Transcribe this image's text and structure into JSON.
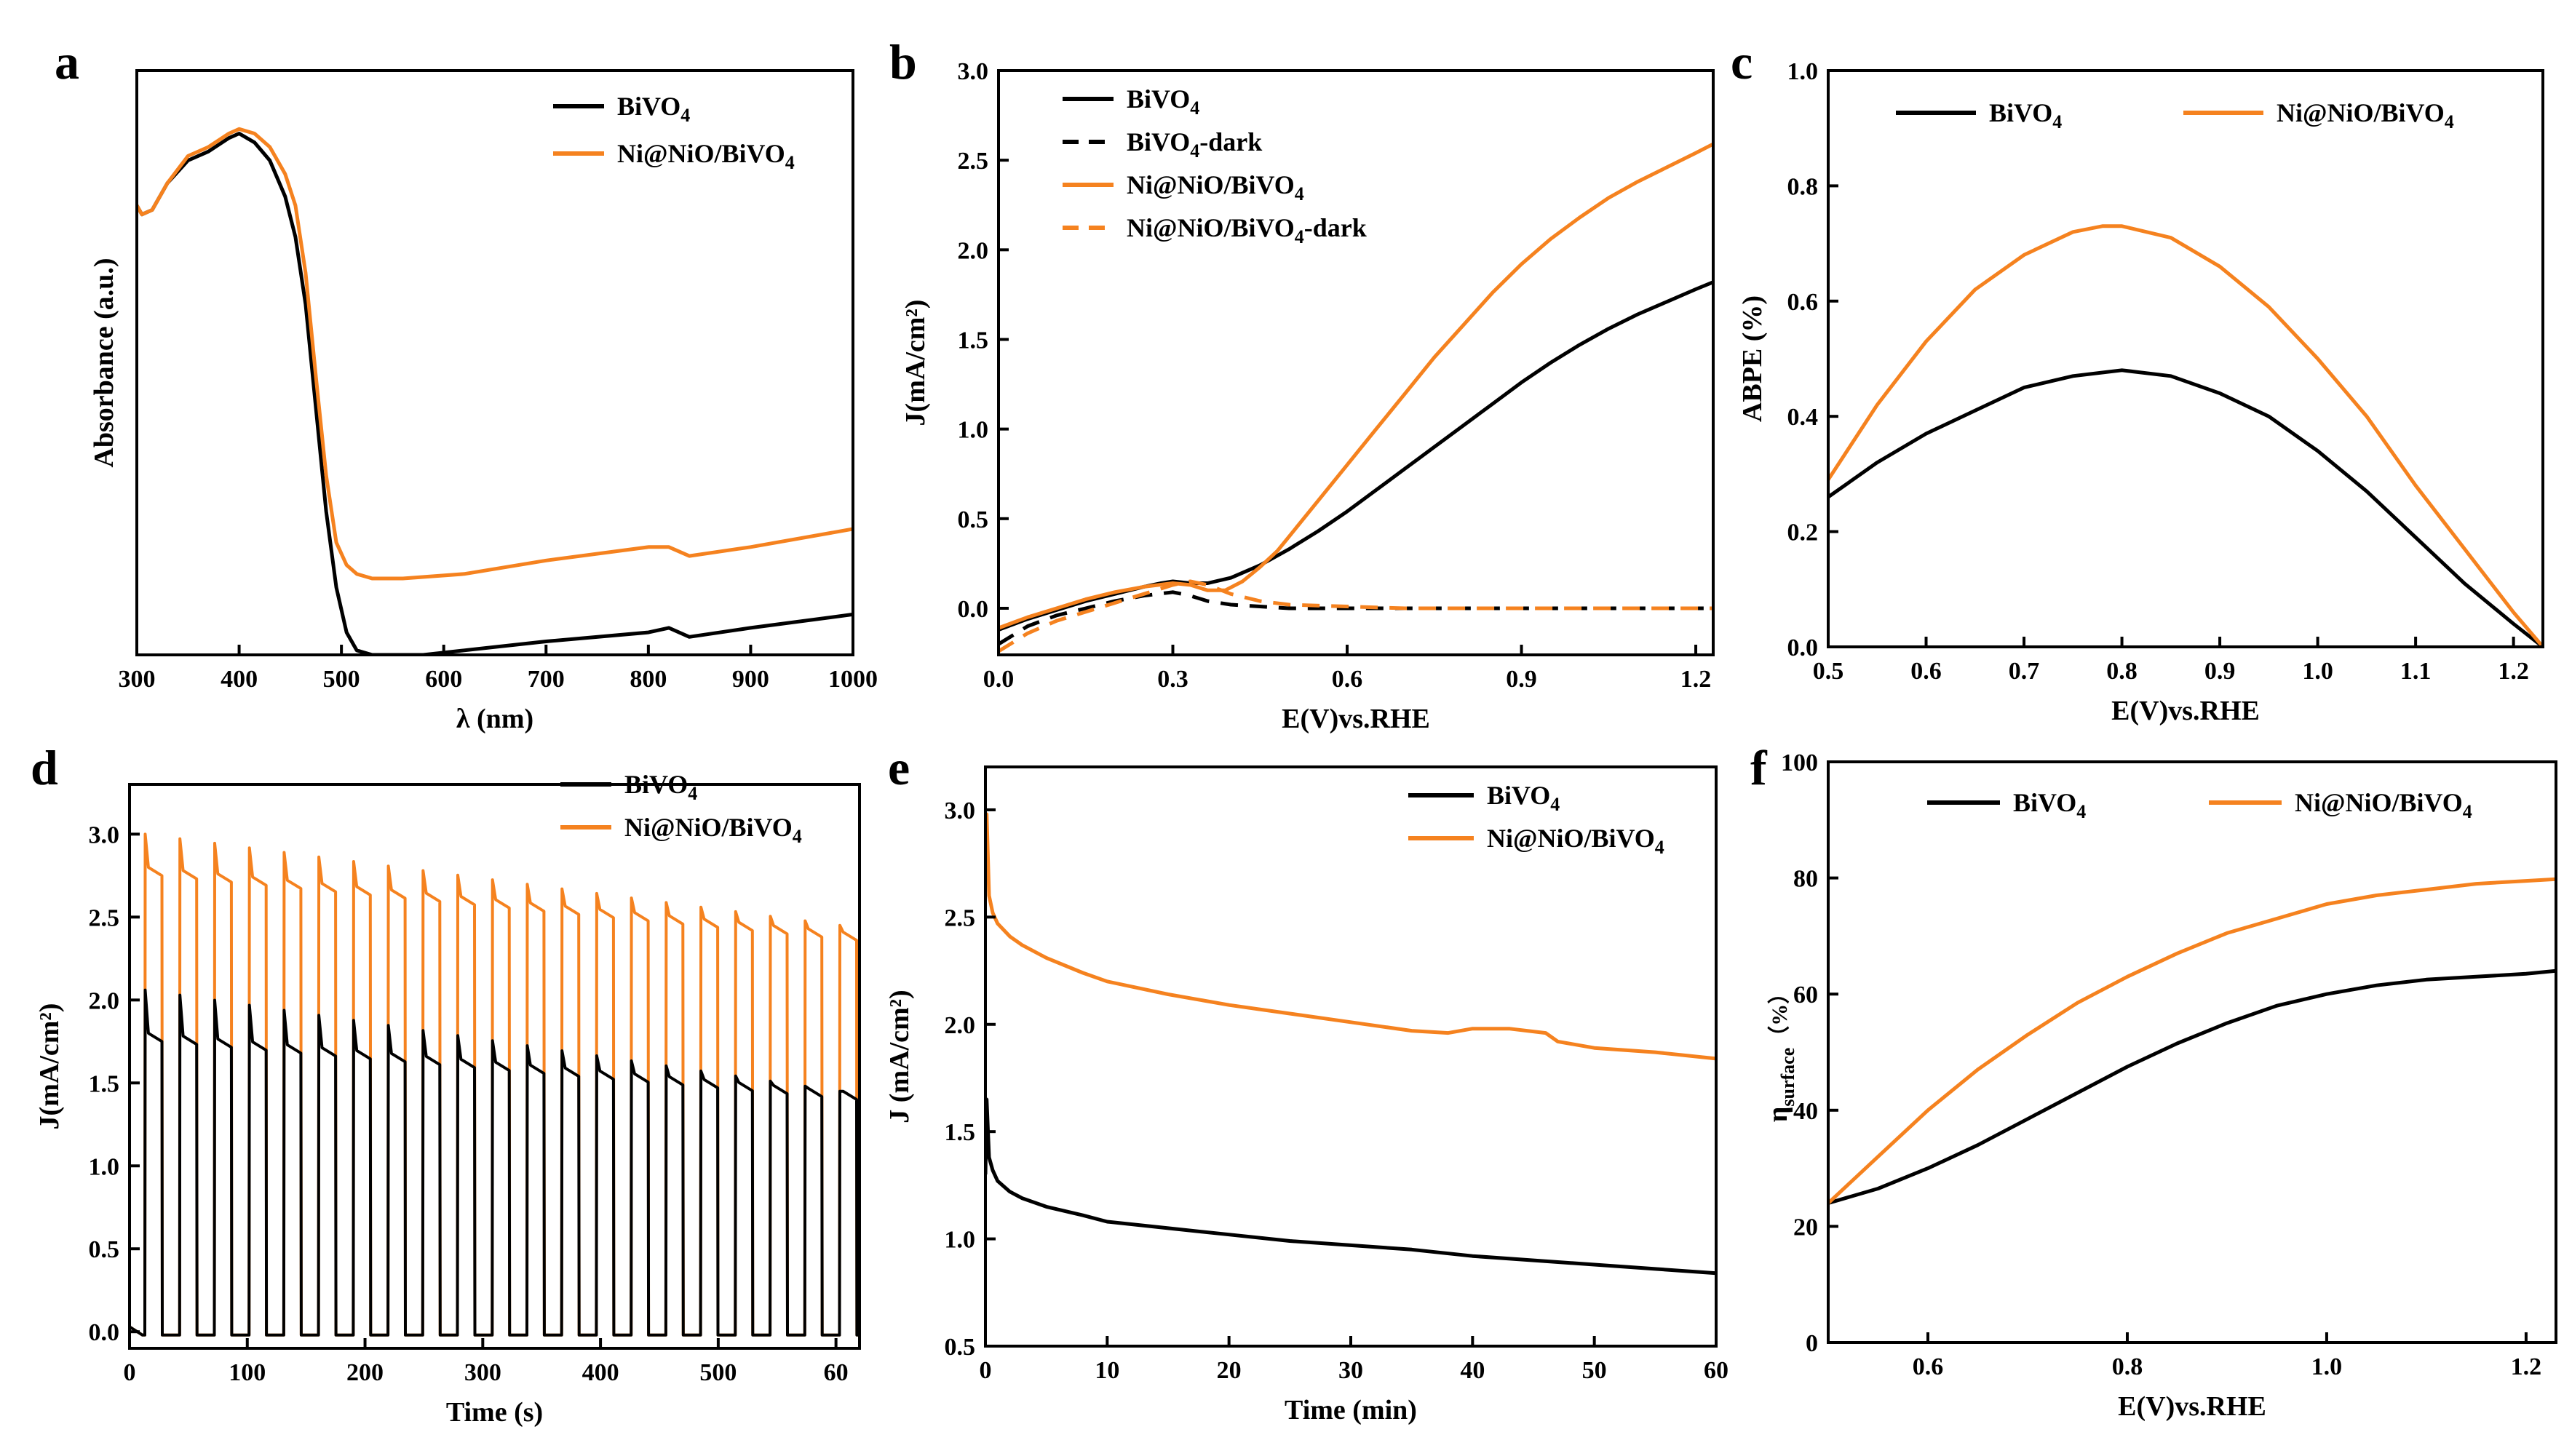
{
  "colors": {
    "bivo4": "#000000",
    "ni": "#F5821F"
  },
  "chart_data": [
    {
      "type": "line",
      "letter": "a",
      "xlabel": "λ (nm)",
      "ylabel": "Absorbance (a.u.)",
      "xlim": [
        300,
        1000
      ],
      "ylim": [
        0,
        1.3
      ],
      "xticks": [
        "300",
        "400",
        "500",
        "600",
        "700",
        "800",
        "900",
        "1000"
      ],
      "yticks": [],
      "legend": [
        {
          "text": "BiVO",
          "sub": "4",
          "after": "",
          "style": "solid",
          "color": "#000000"
        },
        {
          "text": "Ni@NiO/BiVO",
          "sub": "4",
          "after": "",
          "style": "solid",
          "color": "#F5821F"
        }
      ],
      "series": [
        {
          "name": "BiVO4",
          "color": "#000000",
          "dash": false,
          "x": [
            300,
            305,
            315,
            330,
            350,
            370,
            390,
            400,
            415,
            430,
            445,
            455,
            465,
            475,
            485,
            495,
            505,
            515,
            530,
            550,
            580,
            620,
            700,
            800,
            820,
            840,
            900,
            1000
          ],
          "y": [
            1.0,
            0.98,
            0.99,
            1.05,
            1.1,
            1.12,
            1.15,
            1.16,
            1.14,
            1.1,
            1.02,
            0.93,
            0.78,
            0.55,
            0.32,
            0.15,
            0.05,
            0.01,
            0.0,
            0.0,
            0.0,
            0.01,
            0.03,
            0.05,
            0.06,
            0.04,
            0.06,
            0.09
          ]
        },
        {
          "name": "Ni@NiO/BiVO4",
          "color": "#F5821F",
          "dash": false,
          "x": [
            300,
            305,
            315,
            330,
            350,
            370,
            390,
            400,
            415,
            430,
            445,
            455,
            465,
            475,
            485,
            495,
            505,
            515,
            530,
            560,
            620,
            700,
            800,
            820,
            840,
            900,
            1000
          ],
          "y": [
            1.0,
            0.98,
            0.99,
            1.05,
            1.11,
            1.13,
            1.16,
            1.17,
            1.16,
            1.13,
            1.07,
            1.0,
            0.85,
            0.62,
            0.4,
            0.25,
            0.2,
            0.18,
            0.17,
            0.17,
            0.18,
            0.21,
            0.24,
            0.24,
            0.22,
            0.24,
            0.28
          ]
        }
      ]
    },
    {
      "type": "line",
      "letter": "b",
      "xlabel": "E(V)vs.RHE",
      "ylabel": "J(mA/cm²)",
      "xlim": [
        0,
        1.23
      ],
      "ylim": [
        -0.26,
        3.0
      ],
      "xticks": [
        "0.0",
        "0.3",
        "0.6",
        "0.9",
        "1.2"
      ],
      "yticks": [
        "0.0",
        "0.5",
        "1.0",
        "1.5",
        "2.0",
        "2.5",
        "3.0"
      ],
      "legend": [
        {
          "text": "BiVO",
          "sub": "4",
          "after": "",
          "style": "solid",
          "color": "#000000"
        },
        {
          "text": "BiVO",
          "sub": "4",
          "after": "-dark",
          "style": "dash",
          "color": "#000000"
        },
        {
          "text": "Ni@NiO/BiVO",
          "sub": "4",
          "after": "",
          "style": "solid",
          "color": "#F5821F"
        },
        {
          "text": "Ni@NiO/BiVO",
          "sub": "4",
          "after": "-dark",
          "style": "dash",
          "color": "#F5821F"
        }
      ],
      "series": [
        {
          "name": "BiVO4",
          "color": "#000000",
          "dash": false,
          "x": [
            0,
            0.05,
            0.1,
            0.15,
            0.2,
            0.25,
            0.28,
            0.3,
            0.33,
            0.36,
            0.4,
            0.45,
            0.5,
            0.55,
            0.6,
            0.65,
            0.7,
            0.75,
            0.8,
            0.85,
            0.9,
            0.95,
            1.0,
            1.05,
            1.1,
            1.15,
            1.2,
            1.23
          ],
          "y": [
            -0.12,
            -0.06,
            -0.01,
            0.04,
            0.08,
            0.12,
            0.14,
            0.15,
            0.14,
            0.14,
            0.17,
            0.24,
            0.33,
            0.43,
            0.54,
            0.66,
            0.78,
            0.9,
            1.02,
            1.14,
            1.26,
            1.37,
            1.47,
            1.56,
            1.64,
            1.71,
            1.78,
            1.82
          ]
        },
        {
          "name": "BiVO4-dark",
          "color": "#000000",
          "dash": true,
          "x": [
            0,
            0.05,
            0.1,
            0.15,
            0.2,
            0.25,
            0.3,
            0.33,
            0.36,
            0.4,
            0.45,
            0.5,
            0.6,
            0.7,
            0.9,
            1.23
          ],
          "y": [
            -0.2,
            -0.1,
            -0.04,
            0.0,
            0.04,
            0.07,
            0.09,
            0.07,
            0.04,
            0.02,
            0.01,
            0.0,
            0.0,
            0.0,
            0.0,
            0.0
          ]
        },
        {
          "name": "Ni@NiO/BiVO4",
          "color": "#F5821F",
          "dash": false,
          "x": [
            0,
            0.05,
            0.1,
            0.15,
            0.2,
            0.25,
            0.3,
            0.33,
            0.36,
            0.39,
            0.42,
            0.45,
            0.48,
            0.5,
            0.55,
            0.6,
            0.65,
            0.7,
            0.75,
            0.8,
            0.85,
            0.9,
            0.95,
            1.0,
            1.05,
            1.1,
            1.15,
            1.2,
            1.23
          ],
          "y": [
            -0.11,
            -0.05,
            0.0,
            0.05,
            0.09,
            0.12,
            0.14,
            0.13,
            0.1,
            0.1,
            0.15,
            0.23,
            0.32,
            0.4,
            0.6,
            0.8,
            1.0,
            1.2,
            1.4,
            1.58,
            1.76,
            1.92,
            2.06,
            2.18,
            2.29,
            2.38,
            2.46,
            2.54,
            2.59
          ]
        },
        {
          "name": "Ni@NiO/BiVO4-dark",
          "color": "#F5821F",
          "dash": true,
          "x": [
            0,
            0.05,
            0.1,
            0.15,
            0.2,
            0.25,
            0.3,
            0.33,
            0.36,
            0.4,
            0.45,
            0.5,
            0.6,
            0.7,
            0.9,
            1.23
          ],
          "y": [
            -0.24,
            -0.14,
            -0.07,
            -0.02,
            0.03,
            0.08,
            0.13,
            0.15,
            0.13,
            0.08,
            0.04,
            0.02,
            0.01,
            0.0,
            0.0,
            0.0
          ]
        }
      ]
    },
    {
      "type": "line",
      "letter": "c",
      "xlabel": "E(V)vs.RHE",
      "ylabel": "ABPE (%)",
      "xlim": [
        0.5,
        1.23
      ],
      "ylim": [
        0,
        1.0
      ],
      "xticks": [
        "0.5",
        "0.6",
        "0.7",
        "0.8",
        "0.9",
        "1.0",
        "1.1",
        "1.2"
      ],
      "yticks": [
        "0.0",
        "0.2",
        "0.4",
        "0.6",
        "0.8",
        "1.0"
      ],
      "legend": [
        {
          "text": "BiVO",
          "sub": "4",
          "after": "",
          "style": "solid",
          "color": "#000000"
        },
        {
          "text": "Ni@NiO/BiVO",
          "sub": "4",
          "after": "",
          "style": "solid",
          "color": "#F5821F"
        }
      ],
      "series": [
        {
          "name": "BiVO4",
          "color": "#000000",
          "dash": false,
          "x": [
            0.5,
            0.55,
            0.6,
            0.65,
            0.7,
            0.75,
            0.8,
            0.85,
            0.9,
            0.95,
            1.0,
            1.05,
            1.1,
            1.15,
            1.2,
            1.23
          ],
          "y": [
            0.26,
            0.32,
            0.37,
            0.41,
            0.45,
            0.47,
            0.48,
            0.47,
            0.44,
            0.4,
            0.34,
            0.27,
            0.19,
            0.11,
            0.04,
            0.0
          ]
        },
        {
          "name": "Ni@NiO/BiVO4",
          "color": "#F5821F",
          "dash": false,
          "x": [
            0.5,
            0.55,
            0.6,
            0.65,
            0.7,
            0.75,
            0.78,
            0.8,
            0.85,
            0.9,
            0.95,
            1.0,
            1.05,
            1.1,
            1.15,
            1.2,
            1.23
          ],
          "y": [
            0.29,
            0.42,
            0.53,
            0.62,
            0.68,
            0.72,
            0.73,
            0.73,
            0.71,
            0.66,
            0.59,
            0.5,
            0.4,
            0.28,
            0.17,
            0.06,
            0.0
          ]
        }
      ]
    },
    {
      "type": "line",
      "letter": "d",
      "xlabel": "Time (s)",
      "ylabel": "J(mA/cm²)",
      "xlim": [
        0,
        620
      ],
      "ylim": [
        -0.1,
        3.3
      ],
      "xticks": [
        "0",
        "100",
        "200",
        "300",
        "400",
        "500",
        "60"
      ],
      "yticks": [
        "0.0",
        "0.5",
        "1.0",
        "1.5",
        "2.0",
        "2.5",
        "3.0"
      ],
      "chopped": {
        "period": 29.5,
        "on_duration": 14.5,
        "start": 13,
        "cycles": 21,
        "bivo4_on_start": 1.75,
        "bivo4_on_end": 1.4,
        "bivo4_spike_start": 2.06,
        "bivo4_spike_end": 1.45,
        "ni_on_start": 2.75,
        "ni_on_end": 2.36,
        "ni_spike_start": 3.0,
        "ni_spike_end": 2.45,
        "off_level": -0.02
      },
      "legend": [
        {
          "text": "BiVO",
          "sub": "4",
          "after": "",
          "style": "solid",
          "color": "#000000"
        },
        {
          "text": "Ni@NiO/BiVO",
          "sub": "4",
          "after": "",
          "style": "solid",
          "color": "#F5821F"
        }
      ],
      "series": []
    },
    {
      "type": "line",
      "letter": "e",
      "xlabel": "Time (min)",
      "ylabel": "J (mA/cm²)",
      "xlim": [
        0,
        60
      ],
      "ylim": [
        0.5,
        3.2
      ],
      "xticks": [
        "0",
        "10",
        "20",
        "30",
        "40",
        "50",
        "60"
      ],
      "yticks": [
        "0.5",
        "1.0",
        "1.5",
        "2.0",
        "2.5",
        "3.0"
      ],
      "legend": [
        {
          "text": "BiVO",
          "sub": "4",
          "after": "",
          "style": "solid",
          "color": "#000000"
        },
        {
          "text": "Ni@NiO/BiVO",
          "sub": "4",
          "after": "",
          "style": "solid",
          "color": "#F5821F"
        }
      ],
      "series": [
        {
          "name": "BiVO4",
          "color": "#000000",
          "dash": false,
          "x": [
            0,
            0.1,
            0.3,
            0.6,
            1,
            2,
            3,
            5,
            8,
            10,
            15,
            20,
            25,
            30,
            35,
            40,
            45,
            50,
            55,
            60
          ],
          "y": [
            1.3,
            1.65,
            1.38,
            1.32,
            1.27,
            1.22,
            1.19,
            1.15,
            1.11,
            1.08,
            1.05,
            1.02,
            0.99,
            0.97,
            0.95,
            0.92,
            0.9,
            0.88,
            0.86,
            0.84
          ]
        },
        {
          "name": "Ni@NiO/BiVO4",
          "color": "#F5821F",
          "dash": false,
          "x": [
            0,
            0.1,
            0.3,
            0.6,
            1,
            2,
            3,
            5,
            8,
            10,
            15,
            20,
            25,
            30,
            35,
            38,
            40,
            43,
            46,
            47,
            50,
            55,
            60
          ],
          "y": [
            2.8,
            2.98,
            2.6,
            2.52,
            2.47,
            2.41,
            2.37,
            2.31,
            2.24,
            2.2,
            2.14,
            2.09,
            2.05,
            2.01,
            1.97,
            1.96,
            1.98,
            1.98,
            1.96,
            1.92,
            1.89,
            1.87,
            1.84
          ]
        }
      ]
    },
    {
      "type": "line",
      "letter": "f",
      "xlabel": "E(V)vs.RHE",
      "ylabel": "η",
      "ylabel_sub": "surface",
      "ylabel_after": "（%）",
      "xlim": [
        0.5,
        1.23
      ],
      "ylim": [
        0,
        100
      ],
      "xticks": [
        "0.6",
        "0.8",
        "1.0",
        "1.2"
      ],
      "yticks": [
        "0",
        "20",
        "40",
        "60",
        "80",
        "100"
      ],
      "legend": [
        {
          "text": "BiVO",
          "sub": "4",
          "after": "",
          "style": "solid",
          "color": "#000000"
        },
        {
          "text": "Ni@NiO/BiVO",
          "sub": "4",
          "after": "",
          "style": "solid",
          "color": "#F5821F"
        }
      ],
      "series": [
        {
          "name": "BiVO4",
          "color": "#000000",
          "dash": false,
          "x": [
            0.5,
            0.55,
            0.6,
            0.65,
            0.7,
            0.75,
            0.8,
            0.85,
            0.9,
            0.95,
            1.0,
            1.05,
            1.1,
            1.15,
            1.2,
            1.23
          ],
          "y": [
            24,
            26.5,
            30,
            34,
            38.5,
            43,
            47.5,
            51.5,
            55,
            58,
            60,
            61.5,
            62.5,
            63,
            63.5,
            64
          ]
        },
        {
          "name": "Ni@NiO/BiVO4",
          "color": "#F5821F",
          "dash": false,
          "x": [
            0.5,
            0.55,
            0.6,
            0.65,
            0.7,
            0.75,
            0.8,
            0.85,
            0.9,
            0.95,
            1.0,
            1.05,
            1.1,
            1.15,
            1.2,
            1.23
          ],
          "y": [
            24,
            32,
            40,
            47,
            53,
            58.5,
            63,
            67,
            70.5,
            73,
            75.5,
            77,
            78,
            79,
            79.5,
            79.8
          ]
        }
      ]
    }
  ]
}
